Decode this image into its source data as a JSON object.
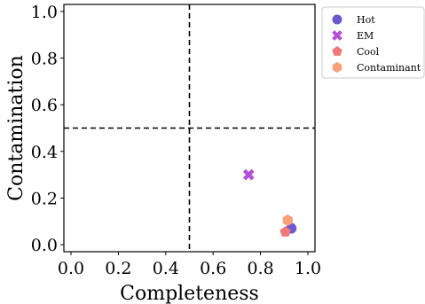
{
  "chart_data": {
    "type": "scatter",
    "xlabel": "Completeness",
    "ylabel": "Contamination",
    "xlim": [
      -0.03,
      1.03
    ],
    "ylim": [
      -0.03,
      1.03
    ],
    "xticks": [
      "0.0",
      "0.2",
      "0.4",
      "0.6",
      "0.8",
      "1.0"
    ],
    "yticks": [
      "0.0",
      "0.2",
      "0.4",
      "0.6",
      "0.8",
      "1.0"
    ],
    "grid": false,
    "reference_lines": {
      "vertical_x": 0.5,
      "horizontal_y": 0.5,
      "style": "dashed"
    },
    "legend_position": "outside-top-right",
    "series": [
      {
        "name": "Hot",
        "marker": "circle",
        "color": "#6a5acd",
        "x": [
          0.93
        ],
        "y": [
          0.07
        ]
      },
      {
        "name": "EM",
        "marker": "x",
        "color": "#b450d8",
        "x": [
          0.75
        ],
        "y": [
          0.3
        ]
      },
      {
        "name": "Cool",
        "marker": "pentagon",
        "color": "#f07878",
        "x": [
          0.905
        ],
        "y": [
          0.055
        ]
      },
      {
        "name": "Contaminant",
        "marker": "hexagon",
        "color": "#f7a07a",
        "x": [
          0.915
        ],
        "y": [
          0.105
        ]
      }
    ]
  }
}
